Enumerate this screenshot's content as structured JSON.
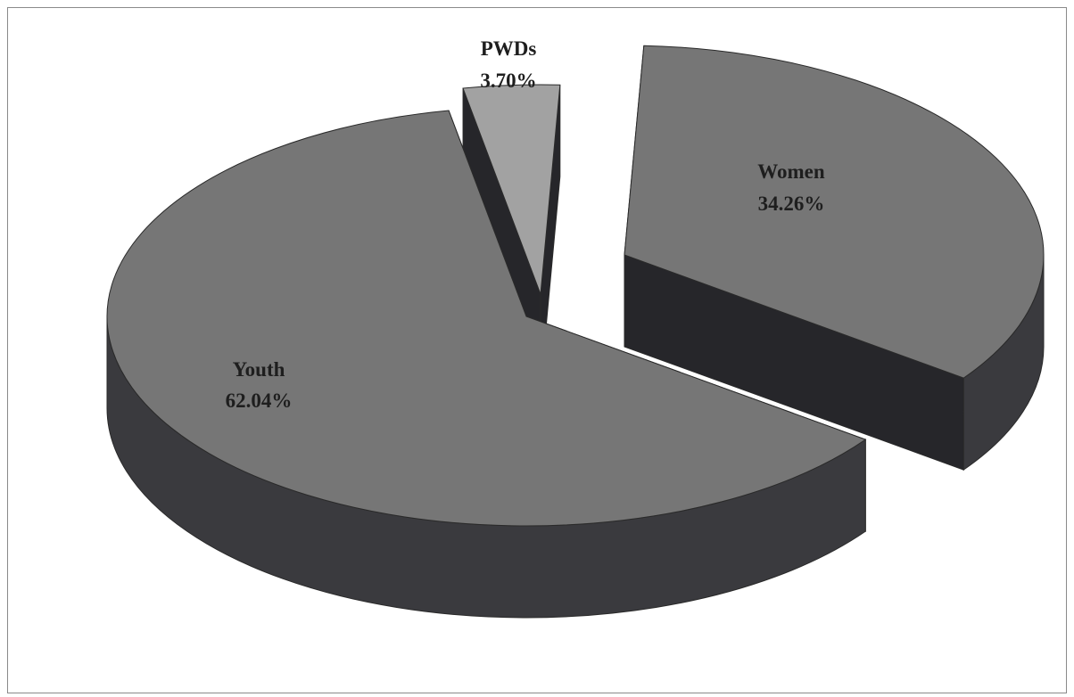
{
  "chart_data": {
    "type": "pie",
    "style": "3d-exploded",
    "slices": [
      {
        "name": "Youth",
        "value": 62.04,
        "label": "62.04%"
      },
      {
        "name": "Women",
        "value": 34.26,
        "label": "34.26%"
      },
      {
        "name": "PWDs",
        "value": 3.7,
        "label": "3.70%"
      }
    ],
    "colors": {
      "top": "#767676",
      "side": "#3a3a3e",
      "side_dark": "#26262a",
      "pwds_top": "#a2a2a2"
    }
  }
}
